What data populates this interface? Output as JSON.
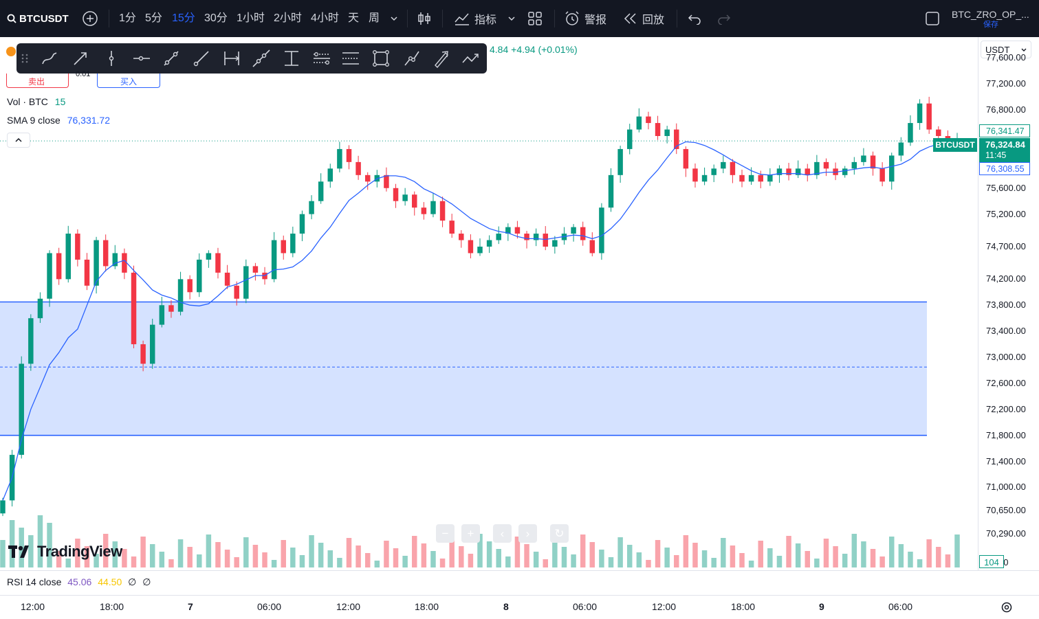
{
  "toolbar": {
    "symbol": "BTCUSDT",
    "timeframes": [
      "1分",
      "5分",
      "15分",
      "30分",
      "1小时",
      "2小时",
      "4小时",
      "天",
      "周"
    ],
    "active_timeframe": "15分",
    "indicators_label": "指标",
    "alerts_label": "警报",
    "replay_label": "回放",
    "layout_name": "BTC_ZRO_OP_...",
    "save_label": "保存"
  },
  "header": {
    "price_change": "4.84 +4.94 (+0.01%)",
    "sell_label": "卖出",
    "buy_label": "买入",
    "spread": "0.01",
    "currency": "USDT"
  },
  "legend": {
    "vol_label": "Vol · BTC",
    "vol_value": "15",
    "sma_label": "SMA 9 close",
    "sma_value": "76,331.72"
  },
  "price_axis": {
    "labels": [
      "77,600.00",
      "77,200.00",
      "76,800.00",
      "75,600.00",
      "75,200.00",
      "74,700.00",
      "74,200.00",
      "73,800.00",
      "73,400.00",
      "73,000.00",
      "72,600.00",
      "72,200.00",
      "71,800.00",
      "71,400.00",
      "71,000.00",
      "70,650.00",
      "70,290.00",
      "30.00"
    ],
    "high_label": "76,341.47",
    "current_price": "76,324.84",
    "countdown": "11:45",
    "low_label": "76,308.55",
    "symbol_tag": "BTCUSDT",
    "volume_tag": "104"
  },
  "rsi": {
    "label": "RSI 14 close",
    "value1": "45.06",
    "value2": "44.50",
    "value3": "∅",
    "value4": "∅"
  },
  "time_axis": {
    "labels": [
      "12:00",
      "18:00",
      "7",
      "06:00",
      "12:00",
      "18:00",
      "8",
      "06:00",
      "12:00",
      "18:00",
      "9",
      "06:00"
    ]
  },
  "branding": {
    "logo_text": "TradingView"
  },
  "colors": {
    "up": "#089981",
    "down": "#f23645",
    "accent": "#2962ff",
    "zone": "#d0dfff",
    "topbar": "#131722"
  },
  "chart_data": {
    "type": "candlestick",
    "symbol": "BTCUSDT",
    "interval": "15m",
    "close": [
      70800,
      71500,
      72900,
      73600,
      73900,
      74600,
      74200,
      74900,
      74500,
      74100,
      74800,
      74400,
      74600,
      74300,
      73200,
      72900,
      73500,
      73800,
      73700,
      74200,
      74000,
      74500,
      74600,
      74300,
      74100,
      73900,
      74400,
      74300,
      74200,
      74800,
      74600,
      74900,
      75200,
      75400,
      75700,
      75900,
      76200,
      76000,
      75800,
      75700,
      75800,
      75600,
      75400,
      75500,
      75300,
      75200,
      75400,
      75100,
      74900,
      74800,
      74600,
      74700,
      74800,
      74900,
      75000,
      74900,
      74800,
      74900,
      74700,
      74800,
      74900,
      75000,
      74800,
      74600,
      75300,
      75800,
      76200,
      76500,
      76700,
      76600,
      76400,
      76500,
      76200,
      75900,
      75700,
      75800,
      75900,
      76000,
      75800,
      75700,
      75800,
      75700,
      75800,
      75900,
      75800,
      75900,
      75800,
      76000,
      75900,
      75800,
      75900,
      76000,
      76100,
      75900,
      75700,
      76100,
      76300,
      76600,
      76900,
      76500,
      76400,
      76300,
      76324.84
    ],
    "sma9_last": 76331.72,
    "zone": {
      "top": 73850,
      "bottom": 71800,
      "mid": 72850
    },
    "ylim": [
      70200,
      77800
    ]
  }
}
